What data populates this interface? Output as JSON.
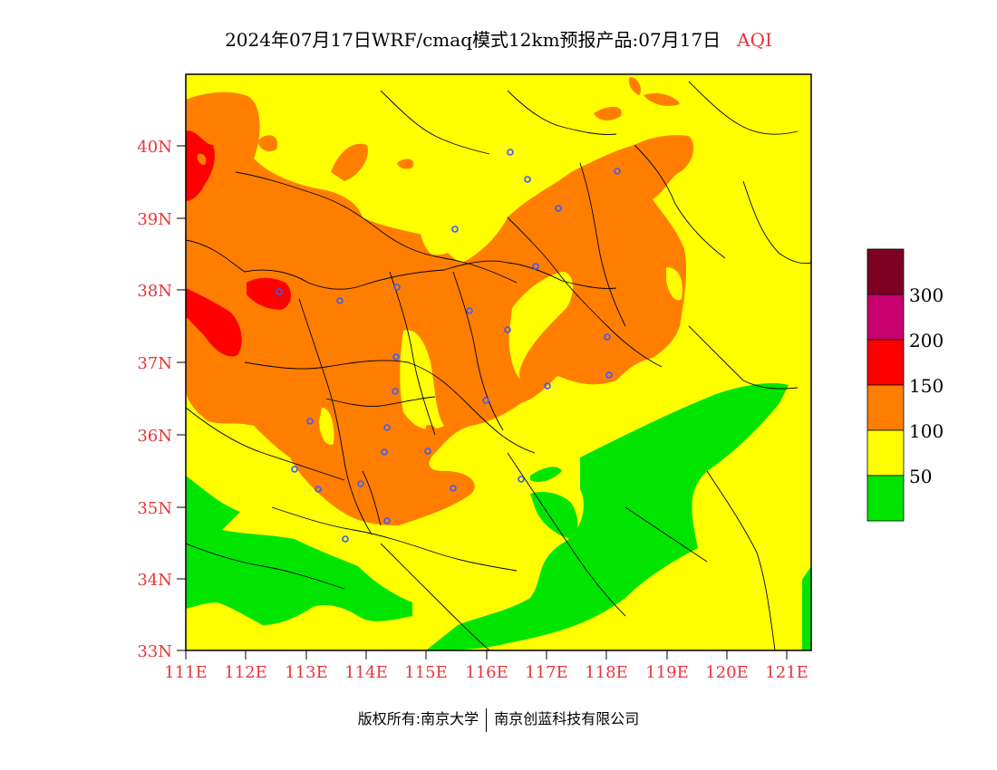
{
  "header": {
    "title": "2024年07月17日WRF/cmaq模式12km预报产品:07月17日",
    "variable": "AQI"
  },
  "map": {
    "lon_labels": [
      "111E",
      "112E",
      "113E",
      "114E",
      "115E",
      "116E",
      "117E",
      "118E",
      "119E",
      "120E",
      "121E"
    ],
    "lat_labels": [
      "33N",
      "34N",
      "35N",
      "36N",
      "37N",
      "38N",
      "39N",
      "40N"
    ],
    "lon_range": [
      111,
      121.4
    ],
    "lat_range": [
      33,
      41
    ],
    "region_description": "North China Plain AQI forecast"
  },
  "legend": {
    "levels": [
      "50",
      "100",
      "150",
      "200",
      "300"
    ],
    "colors": {
      "good": "#00e400",
      "moderate": "#ffff00",
      "sensitive": "#ff7e00",
      "unhealthy": "#ff0000",
      "very_unhealthy": "#c8006e",
      "hazardous": "#7e0023"
    }
  },
  "footer": {
    "copyright": "版权所有:南京大学",
    "company": "南京创蓝科技有限公司"
  }
}
